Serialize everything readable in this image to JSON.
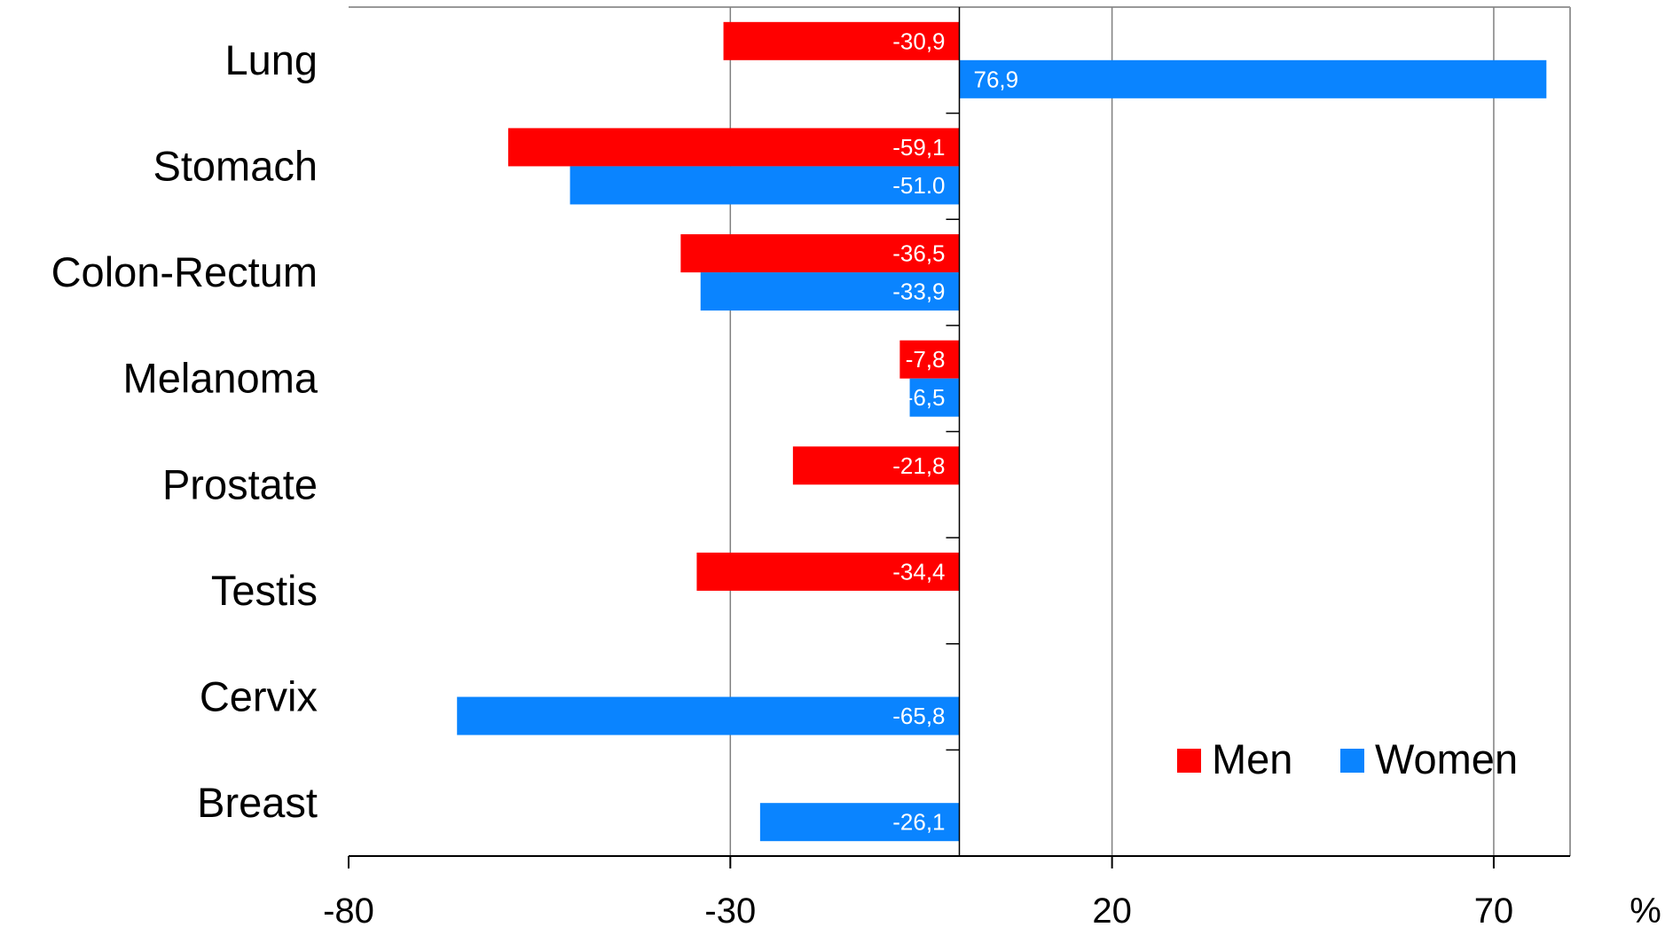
{
  "chart_data": {
    "type": "bar",
    "orientation": "horizontal",
    "categories": [
      "Lung",
      "Stomach",
      "Colon-Rectum",
      "Melanoma",
      "Prostate",
      "Testis",
      "Cervix",
      "Breast"
    ],
    "series": [
      {
        "name": "Men",
        "color": "#ff0000",
        "values": [
          -30.9,
          -59.1,
          -36.5,
          -7.8,
          -21.8,
          -34.4,
          null,
          null
        ],
        "labels": [
          "-30,9",
          "-59,1",
          "-36,5",
          "-7,8",
          "-21,8",
          "-34,4",
          null,
          null
        ]
      },
      {
        "name": "Women",
        "color": "#0a84ff",
        "values": [
          76.9,
          -51.0,
          -33.9,
          -6.5,
          null,
          null,
          -65.8,
          -26.1
        ],
        "labels": [
          "76,9",
          "-51.0",
          "-33,9",
          "-6,5",
          null,
          null,
          "-65,8",
          "-26,1"
        ]
      }
    ],
    "xlim": [
      -80,
      80
    ],
    "xticks": [
      -80,
      -30,
      20,
      70
    ],
    "xtick_labels": [
      "-80",
      "-30",
      "20",
      "70"
    ],
    "xunit": "%",
    "gridlines": "vertical",
    "legend": {
      "position": "bottom-right"
    }
  }
}
